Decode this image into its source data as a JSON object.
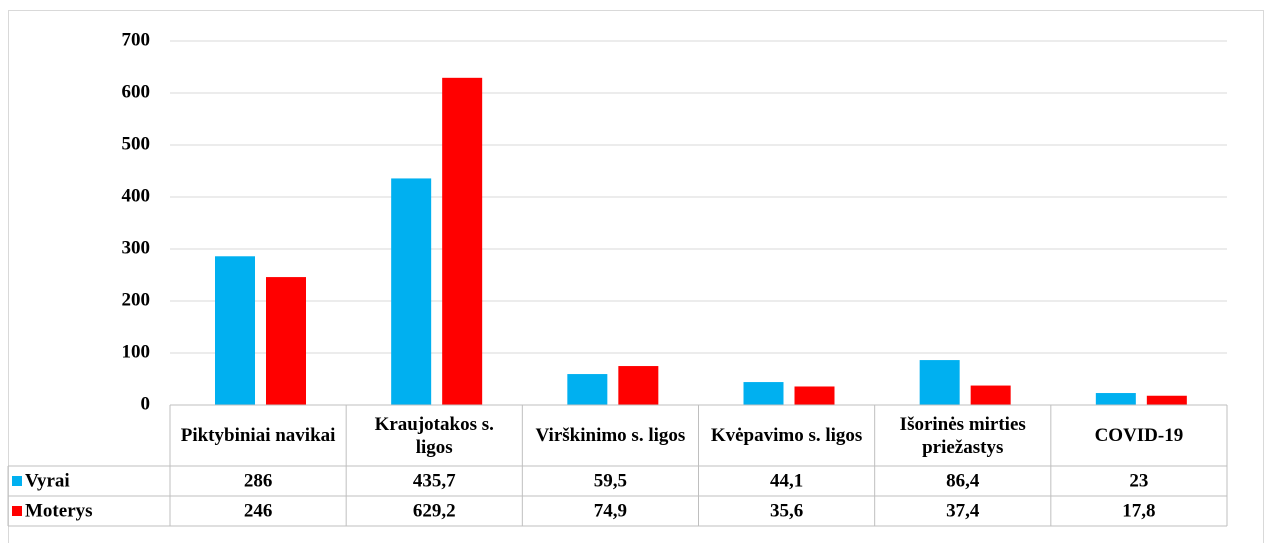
{
  "chart_data": {
    "type": "bar",
    "categories": [
      "Piktybiniai navikai",
      "Kraujotakos s. ligos",
      "Virškinimo s. ligos",
      "Kvėpavimo s. ligos",
      "Išorinės mirties priežastys",
      "COVID-19"
    ],
    "series": [
      {
        "name": "Vyrai",
        "color": "#00b0f0",
        "values": [
          286,
          435.7,
          59.5,
          44.1,
          86.4,
          23
        ],
        "value_labels": [
          "286",
          "435,7",
          "59,5",
          "44,1",
          "86,4",
          "23"
        ]
      },
      {
        "name": "Moterys",
        "color": "#ff0000",
        "values": [
          246,
          629.2,
          74.9,
          35.6,
          37.4,
          17.8
        ],
        "value_labels": [
          "246",
          "629,2",
          "74,9",
          "35,6",
          "37,4",
          "17,8"
        ]
      }
    ],
    "ylim": [
      0,
      700
    ],
    "yticks": [
      0,
      100,
      200,
      300,
      400,
      500,
      600,
      700
    ],
    "grid": true
  }
}
